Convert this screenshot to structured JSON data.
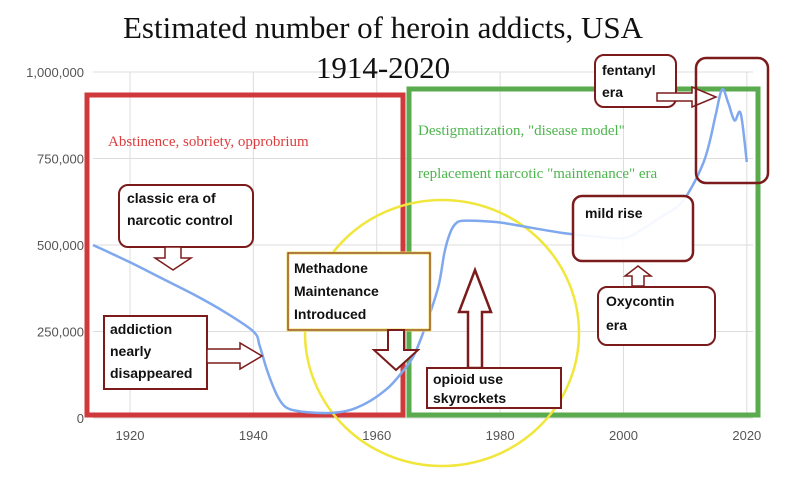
{
  "chart_data": {
    "type": "line",
    "title_line1": "Estimated number of heroin addicts, USA",
    "title_line2": "1914-2020",
    "xlabel": "",
    "ylabel": "",
    "xlim": [
      1914,
      2021
    ],
    "ylim": [
      0,
      1000000
    ],
    "x_ticks": [
      1920,
      1940,
      1960,
      1980,
      2000,
      2020
    ],
    "y_ticks": [
      0,
      250000,
      500000,
      750000,
      1000000
    ],
    "y_tick_labels": [
      "0",
      "250,000",
      "500,000",
      "750,000",
      "1,000,000"
    ],
    "grid": true,
    "series": [
      {
        "x": [
          1914,
          1920,
          1925,
          1930,
          1935,
          1940,
          1941,
          1942,
          1943,
          1944,
          1945,
          1946,
          1948,
          1950,
          1953,
          1956,
          1959,
          1962,
          1964,
          1966,
          1968,
          1970,
          1971,
          1972,
          1973,
          1974,
          1976,
          1980,
          1985,
          1990,
          1995,
          2000,
          2003,
          2006,
          2009,
          2011,
          2013,
          2014,
          2015,
          2016,
          2017,
          2018,
          2019,
          2020
        ],
        "y": [
          500000,
          450000,
          405000,
          360000,
          310000,
          250000,
          210000,
          150000,
          100000,
          60000,
          35000,
          25000,
          18000,
          15000,
          15000,
          25000,
          50000,
          90000,
          130000,
          180000,
          270000,
          380000,
          480000,
          540000,
          565000,
          570000,
          570000,
          565000,
          550000,
          535000,
          525000,
          520000,
          545000,
          580000,
          615000,
          665000,
          740000,
          800000,
          880000,
          950000,
          910000,
          860000,
          880000,
          740000
        ]
      }
    ]
  },
  "colors": {
    "line": "#7fa8ef",
    "grid": "#dddddd",
    "axis_text": "#555555",
    "red_box": "#d0393b",
    "green_box": "#5aab4e",
    "yellow_circle": "#f0e63c",
    "callout": "#7b1b1b",
    "red_text": "#dd3d3d",
    "green_text": "#4db54d"
  },
  "annotations": {
    "red_box_title": "Abstinence, sobriety, opprobrium",
    "green_box_line1": "Destigmatization, \"disease model\"",
    "green_box_line2": "replacement narcotic \"maintenance\" era",
    "fentanyl_line1": "fentanyl",
    "fentanyl_line2": "era",
    "classic_line1": "classic era of",
    "classic_line2": "narcotic control",
    "mild_rise": "mild rise",
    "oxy_line1": "Oxycontin",
    "oxy_line2": "era",
    "addiction_line1": "addiction",
    "addiction_line2": "nearly",
    "addiction_line3": "disappeared",
    "methadone_line1": "Methadone",
    "methadone_line2": "Maintenance",
    "methadone_line3": "Introduced",
    "opioid_line1": "opioid use",
    "opioid_line2": "skyrockets"
  }
}
